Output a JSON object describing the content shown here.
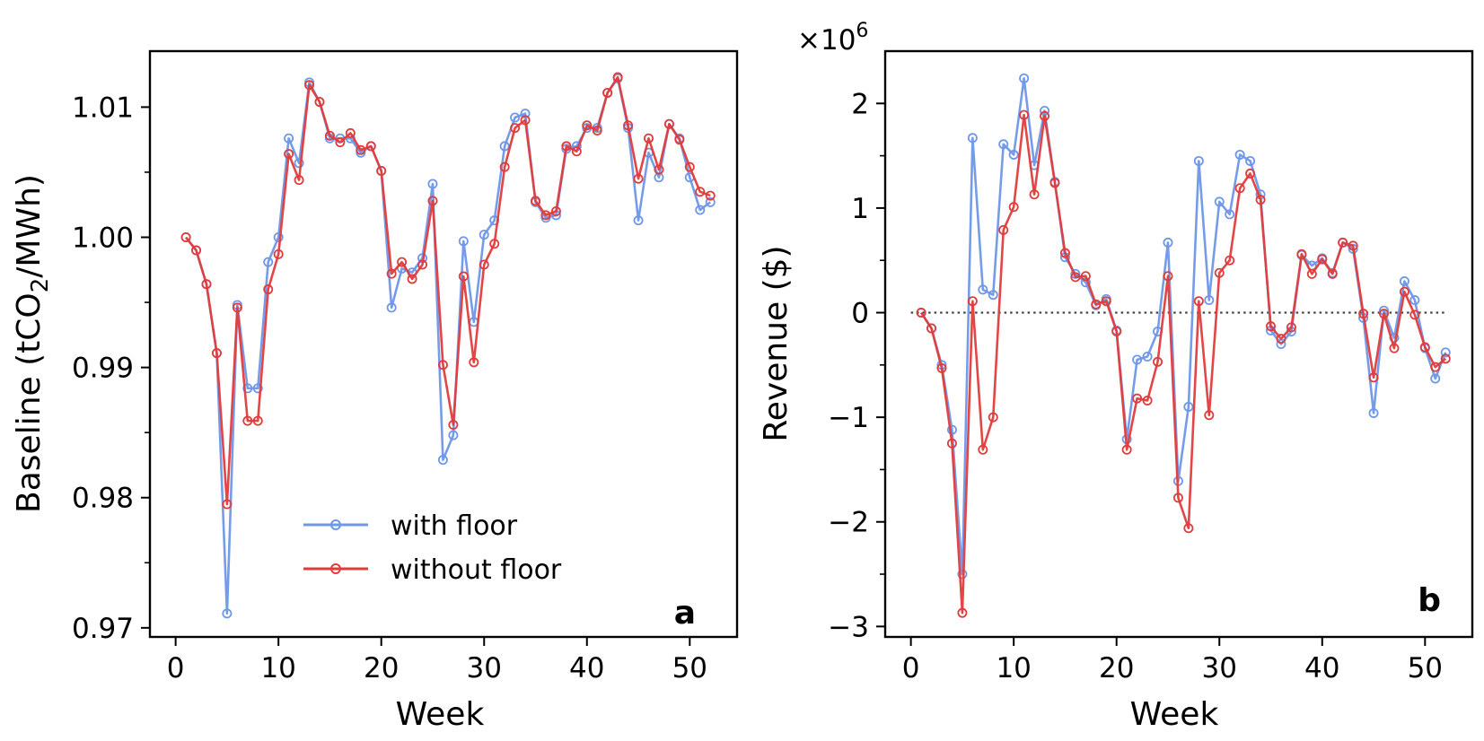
{
  "chart_data": [
    {
      "type": "line",
      "panel_label": "a",
      "xlabel": "Week",
      "ylabel_main": "Baseline (tCO",
      "ylabel_sub": "2",
      "ylabel_tail": "/MWh)",
      "xlim": [
        -2.5,
        54.6
      ],
      "ylim": [
        0.9693,
        1.0143
      ],
      "x_ticks": [
        0,
        10,
        20,
        30,
        40,
        50
      ],
      "x_tick_labels": [
        "0",
        "10",
        "20",
        "30",
        "40",
        "50"
      ],
      "y_ticks": [
        0.97,
        0.98,
        0.99,
        1.0,
        1.01
      ],
      "y_tick_labels": [
        "0.97",
        "0.98",
        "0.99",
        "1.00",
        "1.01"
      ],
      "y_minor_ticks": [
        0.975,
        0.985,
        0.995,
        1.005
      ],
      "legend": {
        "position": "lower-center",
        "entries": [
          "with floor",
          "without floor"
        ]
      },
      "x": [
        1,
        2,
        3,
        4,
        5,
        6,
        7,
        8,
        9,
        10,
        11,
        12,
        13,
        14,
        15,
        16,
        17,
        18,
        19,
        20,
        21,
        22,
        23,
        24,
        25,
        26,
        27,
        28,
        29,
        30,
        31,
        32,
        33,
        34,
        35,
        36,
        37,
        38,
        39,
        40,
        41,
        42,
        43,
        44,
        45,
        46,
        47,
        48,
        49,
        50,
        51,
        52
      ],
      "series": [
        {
          "name": "with floor",
          "color": "#6f97e8",
          "values": [
            1.0,
            0.999,
            0.9964,
            0.9911,
            0.9711,
            0.9948,
            0.9884,
            0.9884,
            0.9981,
            1.0,
            1.0076,
            1.0057,
            1.0119,
            1.0104,
            1.0076,
            1.0076,
            1.0076,
            1.0065,
            1.007,
            1.0051,
            0.9946,
            0.9976,
            0.9973,
            0.9984,
            1.0041,
            0.9829,
            0.9848,
            0.9997,
            0.9935,
            1.0002,
            1.0013,
            1.007,
            1.0092,
            1.0095,
            1.0027,
            1.0015,
            1.0017,
            1.0068,
            1.007,
            1.0084,
            1.0084,
            1.0111,
            1.0122,
            1.0084,
            1.0013,
            1.0065,
            1.0046,
            1.0087,
            1.0076,
            1.0046,
            1.0021,
            1.0027
          ]
        },
        {
          "name": "without floor",
          "color": "#e03c3c",
          "values": [
            1.0,
            0.999,
            0.9964,
            0.9911,
            0.9795,
            0.9946,
            0.9859,
            0.9859,
            0.996,
            0.9987,
            1.0064,
            1.0044,
            1.0117,
            1.0104,
            1.0078,
            1.0073,
            1.008,
            1.0067,
            1.007,
            1.0051,
            0.9972,
            0.9981,
            0.9968,
            0.9979,
            1.0028,
            0.9902,
            0.9856,
            0.997,
            0.9904,
            0.9979,
            0.9995,
            1.0054,
            1.0084,
            1.009,
            1.0028,
            1.0017,
            1.002,
            1.007,
            1.0066,
            1.0086,
            1.0082,
            1.0111,
            1.0123,
            1.0086,
            1.0045,
            1.0076,
            1.0052,
            1.0087,
            1.0075,
            1.0054,
            1.0035,
            1.0032
          ]
        }
      ]
    },
    {
      "type": "line",
      "panel_label": "b",
      "xlabel": "Week",
      "ylabel": "Revenue ($)",
      "y_multiplier_base": "×10",
      "y_multiplier_exp": "6",
      "xlim": [
        -2.5,
        54.6
      ],
      "ylim": [
        -3.1,
        2.5
      ],
      "x_ticks": [
        0,
        10,
        20,
        30,
        40,
        50
      ],
      "x_tick_labels": [
        "0",
        "10",
        "20",
        "30",
        "40",
        "50"
      ],
      "y_ticks": [
        -3,
        -2,
        -1,
        0,
        1,
        2
      ],
      "y_tick_labels": [
        "−3",
        "−2",
        "−1",
        "0",
        "1",
        "2"
      ],
      "y_minor_ticks": [
        -2.5,
        -1.5,
        -0.5,
        0.5,
        1.5
      ],
      "reference_line": {
        "y": 0,
        "style": "dotted",
        "x_from": 0,
        "x_to": 52,
        "color": "#444444"
      },
      "x": [
        1,
        2,
        3,
        4,
        5,
        6,
        7,
        8,
        9,
        10,
        11,
        12,
        13,
        14,
        15,
        16,
        17,
        18,
        19,
        20,
        21,
        22,
        23,
        24,
        25,
        26,
        27,
        28,
        29,
        30,
        31,
        32,
        33,
        34,
        35,
        36,
        37,
        38,
        39,
        40,
        41,
        42,
        43,
        44,
        45,
        46,
        47,
        48,
        49,
        50,
        51,
        52
      ],
      "series": [
        {
          "name": "with floor",
          "color": "#6f97e8",
          "values": [
            0.0,
            -0.15,
            -0.5,
            -1.12,
            -2.5,
            1.67,
            0.22,
            0.17,
            1.61,
            1.51,
            2.24,
            1.41,
            1.93,
            1.25,
            0.53,
            0.37,
            0.29,
            0.07,
            0.13,
            -0.17,
            -1.21,
            -0.45,
            -0.42,
            -0.18,
            0.67,
            -1.61,
            -0.9,
            1.45,
            0.12,
            1.06,
            0.94,
            1.51,
            1.45,
            1.13,
            -0.17,
            -0.3,
            -0.18,
            0.55,
            0.45,
            0.52,
            0.38,
            0.67,
            0.61,
            -0.05,
            -0.96,
            0.02,
            -0.24,
            0.3,
            0.12,
            -0.34,
            -0.63,
            -0.38
          ]
        },
        {
          "name": "without floor",
          "color": "#e03c3c",
          "values": [
            0.0,
            -0.15,
            -0.53,
            -1.25,
            -2.87,
            0.11,
            -1.31,
            -1.0,
            0.79,
            1.01,
            1.89,
            1.13,
            1.88,
            1.24,
            0.57,
            0.34,
            0.35,
            0.08,
            0.11,
            -0.18,
            -1.31,
            -0.82,
            -0.84,
            -0.47,
            0.35,
            -1.77,
            -2.06,
            0.11,
            -0.98,
            0.38,
            0.5,
            1.19,
            1.33,
            1.08,
            -0.13,
            -0.25,
            -0.14,
            0.56,
            0.37,
            0.51,
            0.37,
            0.67,
            0.64,
            -0.01,
            -0.62,
            -0.01,
            -0.34,
            0.2,
            -0.02,
            -0.33,
            -0.52,
            -0.44
          ]
        }
      ]
    }
  ]
}
